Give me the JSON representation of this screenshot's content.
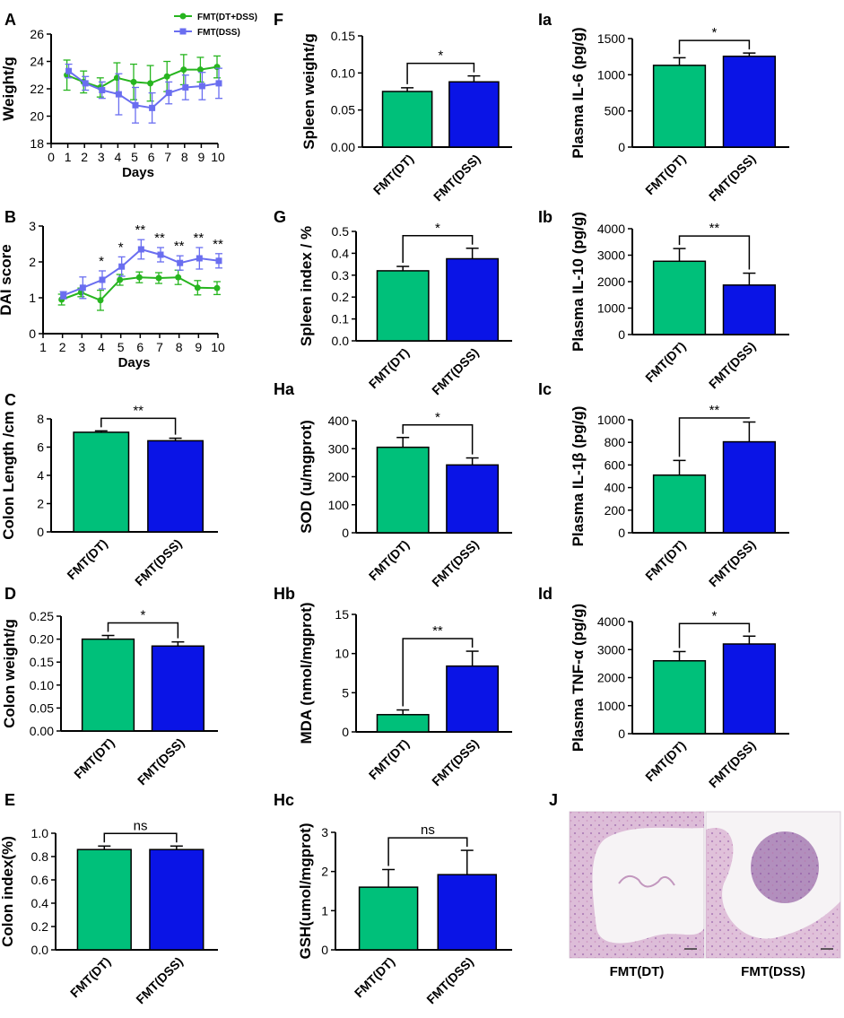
{
  "colors": {
    "green": "#00c07a",
    "blue": "#0a14e6",
    "line_green": "#27b51f",
    "line_blue": "#6a6ef0"
  },
  "chart_data": [
    {
      "id": "A",
      "label": "A",
      "type": "line",
      "ylabel": "Weight/g",
      "xlabel": "Days",
      "xlim": [
        0,
        10
      ],
      "ylim": [
        18,
        26
      ],
      "xticks": [
        0,
        1,
        2,
        3,
        4,
        5,
        6,
        7,
        8,
        9,
        10
      ],
      "yticks": [
        18,
        20,
        22,
        24,
        26
      ],
      "legend": [
        "FMT(DT+DSS)",
        "FMT(DSS)"
      ],
      "series": [
        {
          "name": "FMT(DT+DSS)",
          "color": "green",
          "marker": "circle",
          "x": [
            1,
            2,
            3,
            4,
            5,
            6,
            7,
            8,
            9,
            10
          ],
          "values": [
            23.0,
            22.5,
            22.1,
            22.8,
            22.5,
            22.4,
            22.9,
            23.4,
            23.4,
            23.6
          ],
          "err": [
            1.1,
            0.8,
            0.7,
            1.1,
            1.3,
            1.3,
            1.1,
            1.1,
            0.9,
            0.8
          ]
        },
        {
          "name": "FMT(DSS)",
          "color": "blue",
          "marker": "square",
          "x": [
            1,
            2,
            3,
            4,
            5,
            6,
            7,
            8,
            9,
            10
          ],
          "values": [
            23.3,
            22.4,
            21.9,
            21.6,
            20.8,
            20.6,
            21.7,
            22.1,
            22.2,
            22.4
          ],
          "err": [
            0.5,
            0.5,
            0.6,
            1.5,
            1.3,
            1.1,
            0.8,
            0.9,
            1.0,
            1.1
          ]
        }
      ]
    },
    {
      "id": "B",
      "label": "B",
      "type": "line",
      "ylabel": "DAI score",
      "xlabel": "Days",
      "xlim": [
        1,
        10
      ],
      "ylim": [
        0,
        3
      ],
      "xticks": [
        1,
        2,
        3,
        4,
        5,
        6,
        7,
        8,
        9,
        10
      ],
      "yticks": [
        0,
        1,
        2,
        3
      ],
      "series": [
        {
          "name": "FMT(DT+DSS)",
          "color": "green",
          "marker": "circle",
          "x": [
            2,
            3,
            4,
            5,
            6,
            7,
            8,
            9,
            10
          ],
          "values": [
            0.95,
            1.15,
            0.93,
            1.5,
            1.57,
            1.55,
            1.57,
            1.28,
            1.27
          ],
          "err": [
            0.15,
            0.12,
            0.28,
            0.15,
            0.15,
            0.15,
            0.2,
            0.2,
            0.18
          ]
        },
        {
          "name": "FMT(DSS)",
          "color": "blue",
          "marker": "square",
          "x": [
            2,
            3,
            4,
            5,
            6,
            7,
            8,
            9,
            10
          ],
          "values": [
            1.07,
            1.28,
            1.5,
            1.87,
            2.35,
            2.2,
            1.97,
            2.1,
            2.03
          ],
          "err": [
            0.1,
            0.3,
            0.25,
            0.27,
            0.27,
            0.2,
            0.2,
            0.3,
            0.2
          ]
        }
      ],
      "annotations": [
        {
          "x": 4,
          "text": "*"
        },
        {
          "x": 5,
          "text": "*"
        },
        {
          "x": 6,
          "text": "**"
        },
        {
          "x": 7,
          "text": "**"
        },
        {
          "x": 8,
          "text": "**"
        },
        {
          "x": 9,
          "text": "**"
        },
        {
          "x": 10,
          "text": "**"
        }
      ]
    },
    {
      "id": "C",
      "label": "C",
      "type": "bar",
      "ylabel": "Colon Length /cm",
      "categories": [
        "FMT(DT)",
        "FMT(DSS)"
      ],
      "values": [
        7.05,
        6.45
      ],
      "err": [
        0.1,
        0.18
      ],
      "ylim": [
        0,
        8
      ],
      "yticks": [
        0,
        2,
        4,
        6,
        8
      ],
      "sig": "**"
    },
    {
      "id": "D",
      "label": "D",
      "type": "bar",
      "ylabel": "Colon weight/g",
      "categories": [
        "FMT(DT)",
        "FMT(DSS)"
      ],
      "values": [
        0.2,
        0.185
      ],
      "err": [
        0.008,
        0.009
      ],
      "ylim": [
        0,
        0.25
      ],
      "yticks": [
        "0.00",
        "0.05",
        "0.10",
        "0.15",
        "0.20",
        "0.25"
      ],
      "sig": "*"
    },
    {
      "id": "E",
      "label": "E",
      "type": "bar",
      "ylabel": "Colon index(%)",
      "categories": [
        "FMT(DT)",
        "FMT(DSS)"
      ],
      "values": [
        0.86,
        0.86
      ],
      "err": [
        0.03,
        0.03
      ],
      "ylim": [
        0,
        1.0
      ],
      "yticks": [
        "0.0",
        "0.2",
        "0.4",
        "0.6",
        "0.8",
        "1.0"
      ],
      "sig": "ns"
    },
    {
      "id": "F",
      "label": "F",
      "type": "bar",
      "ylabel": "Spleen weight/g",
      "categories": [
        "FMT(DT)",
        "FMT(DSS)"
      ],
      "values": [
        0.075,
        0.088
      ],
      "err": [
        0.005,
        0.008
      ],
      "ylim": [
        0,
        0.15
      ],
      "yticks": [
        "0.00",
        "0.05",
        "0.10",
        "0.15"
      ],
      "sig": "*"
    },
    {
      "id": "G",
      "label": "G",
      "type": "bar",
      "ylabel": "Spleen index / %",
      "categories": [
        "FMT(DT)",
        "FMT(DSS)"
      ],
      "values": [
        0.32,
        0.375
      ],
      "err": [
        0.02,
        0.048
      ],
      "ylim": [
        0,
        0.5
      ],
      "yticks": [
        "0.0",
        "0.1",
        "0.2",
        "0.3",
        "0.4",
        "0.5"
      ],
      "sig": "*"
    },
    {
      "id": "Ha",
      "label": "Ha",
      "type": "bar",
      "ylabel": "SOD (u/mgprot)",
      "categories": [
        "FMT(DT)",
        "FMT(DSS)"
      ],
      "values": [
        305,
        242
      ],
      "err": [
        35,
        25
      ],
      "ylim": [
        0,
        400
      ],
      "yticks": [
        0,
        100,
        200,
        300,
        400
      ],
      "sig": "*"
    },
    {
      "id": "Hb",
      "label": "Hb",
      "type": "bar",
      "ylabel": "MDA (nmol/mgprot)",
      "categories": [
        "FMT(DT)",
        "FMT(DSS)"
      ],
      "values": [
        2.2,
        8.4
      ],
      "err": [
        0.6,
        1.9
      ],
      "ylim": [
        0,
        15
      ],
      "yticks": [
        0,
        5,
        10,
        15
      ],
      "sig": "**"
    },
    {
      "id": "Hc",
      "label": "Hc",
      "type": "bar",
      "ylabel": "GSH(umol/mgprot)",
      "categories": [
        "FMT(DT)",
        "FMT(DSS)"
      ],
      "values": [
        1.6,
        1.92
      ],
      "err": [
        0.45,
        0.62
      ],
      "ylim": [
        0,
        3
      ],
      "yticks": [
        0,
        1,
        2,
        3
      ],
      "sig": "ns"
    },
    {
      "id": "Ia",
      "label": "Ia",
      "type": "bar",
      "ylabel": "Plasma  IL-6 (pg/g)",
      "categories": [
        "FMT(DT)",
        "FMT(DSS)"
      ],
      "values": [
        1130,
        1255
      ],
      "err": [
        105,
        45
      ],
      "ylim": [
        0,
        1500
      ],
      "yticks": [
        0,
        500,
        1000,
        1500
      ],
      "sig": "*"
    },
    {
      "id": "Ib",
      "label": "Ib",
      "type": "bar",
      "ylabel": "Plasma  IL-10 (pg/g)",
      "categories": [
        "FMT(DT)",
        "FMT(DSS)"
      ],
      "values": [
        2770,
        1870
      ],
      "err": [
        480,
        450
      ],
      "ylim": [
        0,
        4000
      ],
      "yticks": [
        0,
        1000,
        2000,
        3000,
        4000
      ],
      "sig": "**"
    },
    {
      "id": "Ic",
      "label": "Ic",
      "type": "bar",
      "ylabel": "Plasma  IL-1β (pg/g)",
      "categories": [
        "FMT(DT)",
        "FMT(DSS)"
      ],
      "values": [
        510,
        805
      ],
      "err": [
        130,
        175
      ],
      "ylim": [
        0,
        1000
      ],
      "yticks": [
        0,
        200,
        400,
        600,
        800,
        1000
      ],
      "sig": "**"
    },
    {
      "id": "Id",
      "label": "Id",
      "type": "bar",
      "ylabel": "Plasma TNF-α (pg/g)",
      "categories": [
        "FMT(DT)",
        "FMT(DSS)"
      ],
      "values": [
        2600,
        3200
      ],
      "err": [
        330,
        280
      ],
      "ylim": [
        0,
        4000
      ],
      "yticks": [
        0,
        1000,
        2000,
        3000,
        4000
      ],
      "sig": "*"
    }
  ],
  "histology": {
    "label": "J",
    "captions": [
      "FMT(DT)",
      "FMT(DSS)"
    ]
  }
}
